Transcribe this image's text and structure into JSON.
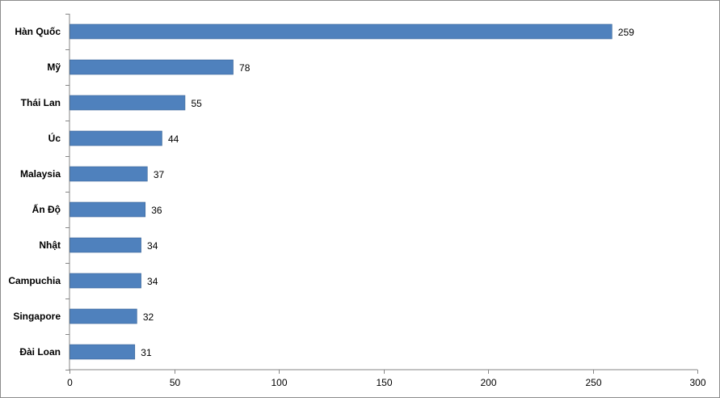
{
  "chart_data": {
    "type": "bar",
    "orientation": "horizontal",
    "categories": [
      "Hàn Quốc",
      "Mỹ",
      "Thái Lan",
      "Úc",
      "Malaysia",
      "Ấn Độ",
      "Nhật",
      "Campuchia",
      "Singapore",
      "Đài Loan"
    ],
    "values": [
      259,
      78,
      55,
      44,
      37,
      36,
      34,
      34,
      32,
      31
    ],
    "data_labels": [
      "259",
      "78",
      "55",
      "44",
      "37",
      "36",
      "34",
      "34",
      "32",
      "31"
    ],
    "xlim": [
      0,
      300
    ],
    "x_ticks": [
      0,
      50,
      100,
      150,
      200,
      250,
      300
    ],
    "x_tick_labels": [
      "0",
      "50",
      "100",
      "150",
      "200",
      "250",
      "300"
    ],
    "title": "",
    "xlabel": "",
    "ylabel": "",
    "grid": false,
    "legend": "none",
    "bar_color": "#4f81bd",
    "bar_border_color": "#3a6596"
  }
}
